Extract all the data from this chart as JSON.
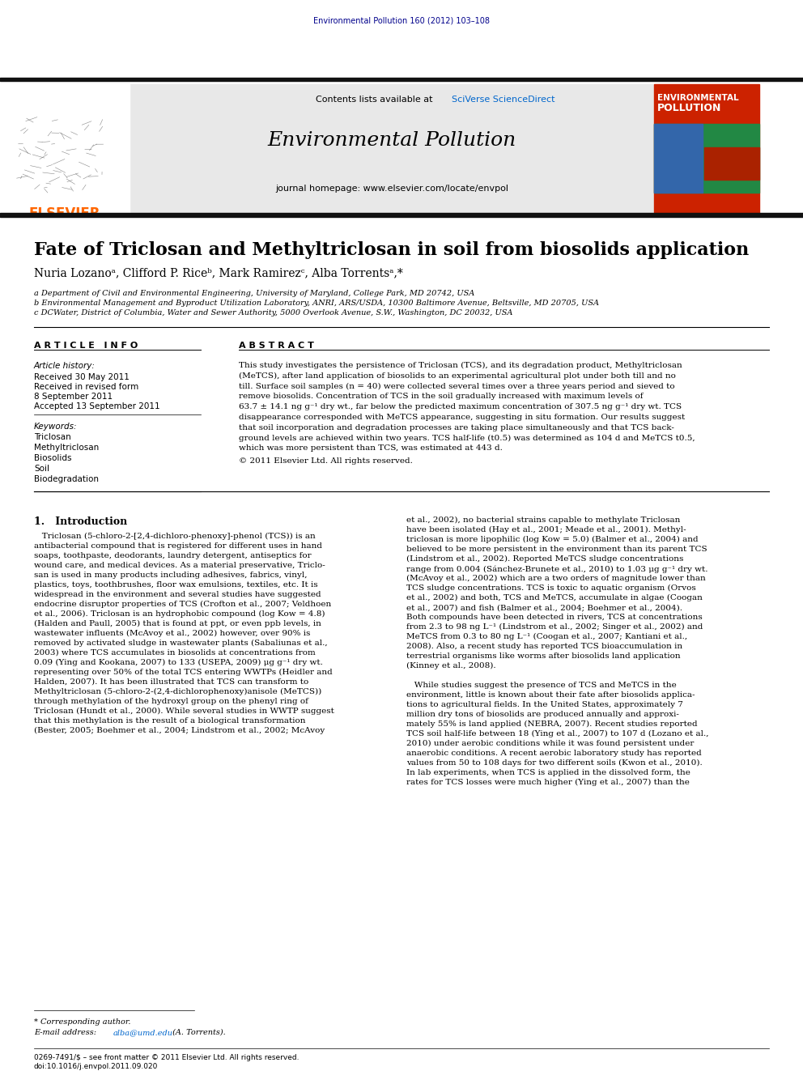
{
  "journal_header_text": "Environmental Pollution 160 (2012) 103–108",
  "journal_header_color": "#00008B",
  "sciverse_color": "#0066CC",
  "elsevier_color": "#FF6600",
  "header_bg": "#E8E8E8",
  "dark_bar_color": "#111111",
  "page_bg": "#FFFFFF",
  "cover_red": "#CC2200",
  "cover_green": "#228844",
  "cover_blue": "#3366AA",
  "abstract_lines": [
    "This study investigates the persistence of Triclosan (TCS), and its degradation product, Methyltriclosan",
    "(MeTCS), after land application of biosolids to an experimental agricultural plot under both till and no",
    "till. Surface soil samples (n = 40) were collected several times over a three years period and sieved to",
    "remove biosolids. Concentration of TCS in the soil gradually increased with maximum levels of",
    "63.7 ± 14.1 ng g⁻¹ dry wt., far below the predicted maximum concentration of 307.5 ng g⁻¹ dry wt. TCS",
    "disappearance corresponded with MeTCS appearance, suggesting in situ formation. Our results suggest",
    "that soil incorporation and degradation processes are taking place simultaneously and that TCS back-",
    "ground levels are achieved within two years. TCS half-life (t0.5) was determined as 104 d and MeTCS t0.5,",
    "which was more persistent than TCS, was estimated at 443 d."
  ],
  "left_col_lines": [
    "   Triclosan (5-chloro-2-[2,4-dichloro-phenoxy]-phenol (TCS)) is an",
    "antibacterial compound that is registered for different uses in hand",
    "soaps, toothpaste, deodorants, laundry detergent, antiseptics for",
    "wound care, and medical devices. As a material preservative, Triclo-",
    "san is used in many products including adhesives, fabrics, vinyl,",
    "plastics, toys, toothbrushes, floor wax emulsions, textiles, etc. It is",
    "widespread in the environment and several studies have suggested",
    "endocrine disruptor properties of TCS (Crofton et al., 2007; Veldhoen",
    "et al., 2006). Triclosan is an hydrophobic compound (log Kow = 4.8)",
    "(Halden and Paull, 2005) that is found at ppt, or even ppb levels, in",
    "wastewater influents (McAvoy et al., 2002) however, over 90% is",
    "removed by activated sludge in wastewater plants (Sabaliunas et al.,",
    "2003) where TCS accumulates in biosolids at concentrations from",
    "0.09 (Ying and Kookana, 2007) to 133 (USEPA, 2009) μg g⁻¹ dry wt.",
    "representing over 50% of the total TCS entering WWTPs (Heidler and",
    "Halden, 2007). It has been illustrated that TCS can transform to",
    "Methyltriclosan (5-chloro-2-(2,4-dichlorophenoxy)anisole (MeTCS))",
    "through methylation of the hydroxyl group on the phenyl ring of",
    "Triclosan (Hundt et al., 2000). While several studies in WWTP suggest",
    "that this methylation is the result of a biological transformation",
    "(Bester, 2005; Boehmer et al., 2004; Lindstrom et al., 2002; McAvoy"
  ],
  "right_col_lines": [
    "et al., 2002), no bacterial strains capable to methylate Triclosan",
    "have been isolated (Hay et al., 2001; Meade et al., 2001). Methyl-",
    "triclosan is more lipophilic (log Kow = 5.0) (Balmer et al., 2004) and",
    "believed to be more persistent in the environment than its parent TCS",
    "(Lindstrom et al., 2002). Reported MeTCS sludge concentrations",
    "range from 0.004 (Sánchez-Brunete et al., 2010) to 1.03 μg g⁻¹ dry wt.",
    "(McAvoy et al., 2002) which are a two orders of magnitude lower than",
    "TCS sludge concentrations. TCS is toxic to aquatic organism (Orvos",
    "et al., 2002) and both, TCS and MeTCS, accumulate in algae (Coogan",
    "et al., 2007) and fish (Balmer et al., 2004; Boehmer et al., 2004).",
    "Both compounds have been detected in rivers, TCS at concentrations",
    "from 2.3 to 98 ng L⁻¹ (Lindstrom et al., 2002; Singer et al., 2002) and",
    "MeTCS from 0.3 to 80 ng L⁻¹ (Coogan et al., 2007; Kantiani et al.,",
    "2008). Also, a recent study has reported TCS bioaccumulation in",
    "terrestrial organisms like worms after biosolids land application",
    "(Kinney et al., 2008).",
    "",
    "   While studies suggest the presence of TCS and MeTCS in the",
    "environment, little is known about their fate after biosolids applica-",
    "tions to agricultural fields. In the United States, approximately 7",
    "million dry tons of biosolids are produced annually and approxi-",
    "mately 55% is land applied (NEBRA, 2007). Recent studies reported",
    "TCS soil half-life between 18 (Ying et al., 2007) to 107 d (Lozano et al.,",
    "2010) under aerobic conditions while it was found persistent under",
    "anaerobic conditions. A recent aerobic laboratory study has reported",
    "values from 50 to 108 days for two different soils (Kwon et al., 2010).",
    "In lab experiments, when TCS is applied in the dissolved form, the",
    "rates for TCS losses were much higher (Ying et al., 2007) than the"
  ],
  "keywords": [
    "Triclosan",
    "Methyltriclosan",
    "Biosolids",
    "Soil",
    "Biodegradation"
  ],
  "affil_a": "a Department of Civil and Environmental Engineering, University of Maryland, College Park, MD 20742, USA",
  "affil_b": "b Environmental Management and Byproduct Utilization Laboratory, ANRI, ARS/USDA, 10300 Baltimore Avenue, Beltsville, MD 20705, USA",
  "affil_c": "c DCWater, District of Columbia, Water and Sewer Authority, 5000 Overlook Avenue, S.W., Washington, DC 20032, USA"
}
